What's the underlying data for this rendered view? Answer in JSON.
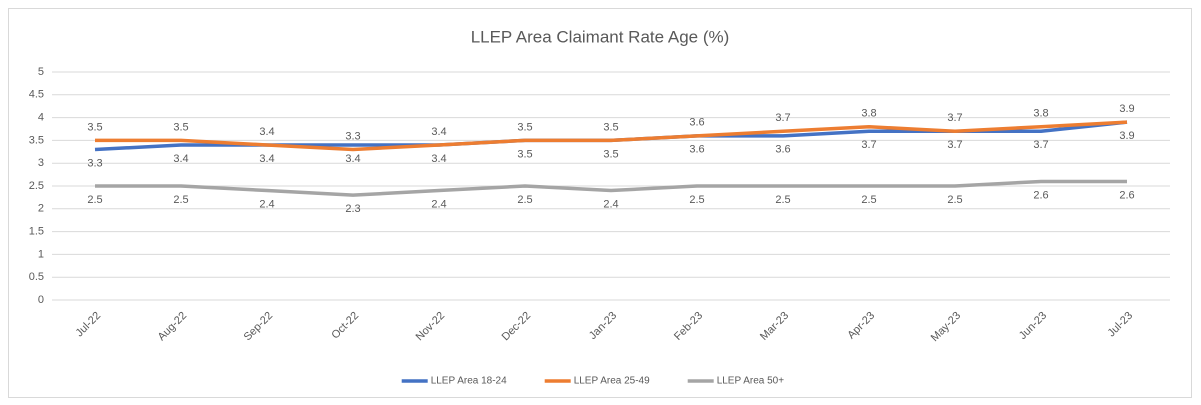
{
  "chart_data": {
    "type": "line",
    "title": "LLEP Area Claimant Rate Age (%)",
    "categories": [
      "Jul-22",
      "Aug-22",
      "Sep-22",
      "Oct-22",
      "Nov-22",
      "Dec-22",
      "Jan-23",
      "Feb-23",
      "Mar-23",
      "Apr-23",
      "May-23",
      "Jun-23",
      "Jul-23"
    ],
    "series": [
      {
        "name": "LLEP Area 18-24",
        "color": "#4472c4",
        "values": [
          3.3,
          3.4,
          3.4,
          3.4,
          3.4,
          3.5,
          3.5,
          3.6,
          3.6,
          3.7,
          3.7,
          3.7,
          3.9
        ]
      },
      {
        "name": "LLEP Area 25-49",
        "color": "#ed7d31",
        "values": [
          3.5,
          3.5,
          3.4,
          3.3,
          3.4,
          3.5,
          3.5,
          3.6,
          3.7,
          3.8,
          3.7,
          3.8,
          3.9
        ]
      },
      {
        "name": "LLEP Area 50+",
        "color": "#a5a5a5",
        "values": [
          2.5,
          2.5,
          2.4,
          2.3,
          2.4,
          2.5,
          2.4,
          2.5,
          2.5,
          2.5,
          2.5,
          2.6,
          2.6
        ]
      }
    ],
    "ylim": [
      0,
      5
    ],
    "yticks": [
      0,
      0.5,
      1,
      1.5,
      2,
      2.5,
      3,
      3.5,
      4,
      4.5,
      5
    ],
    "grid": true,
    "legend": "bottom"
  }
}
